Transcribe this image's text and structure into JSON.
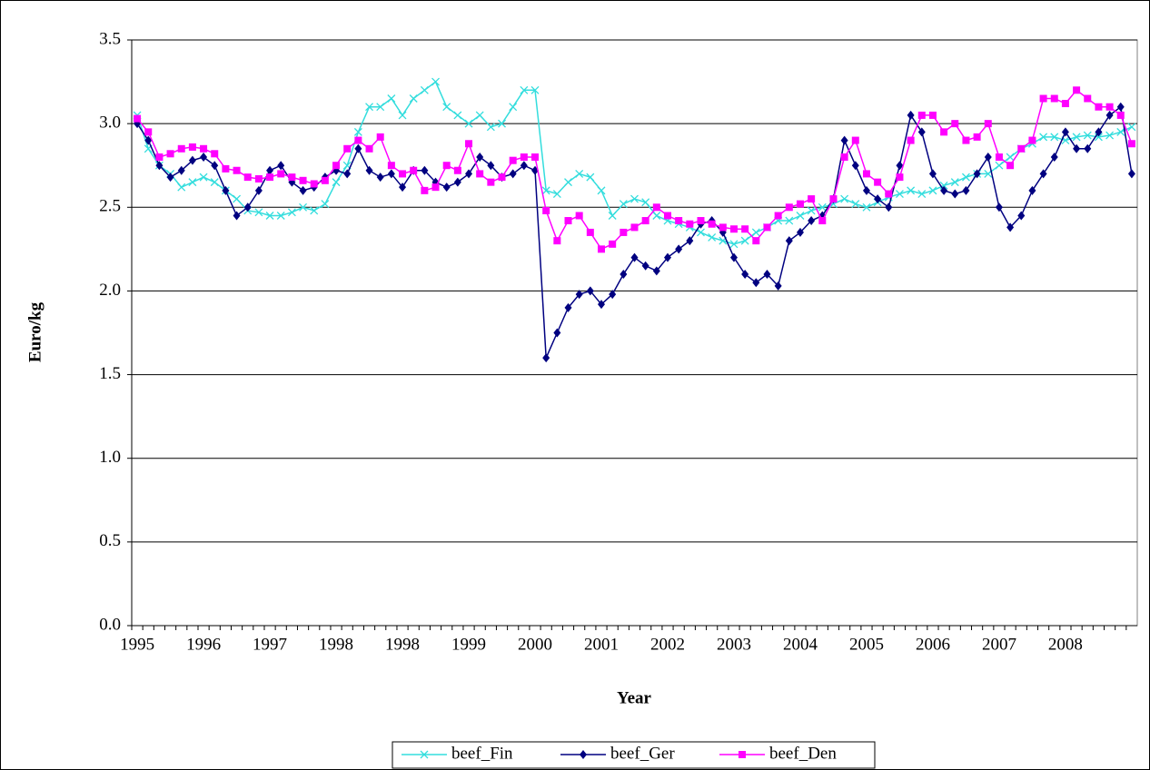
{
  "chart_data": {
    "type": "line",
    "x_label": "Year",
    "y_label": "Euro/kg",
    "categories": [
      "1995",
      null,
      null,
      null,
      null,
      null,
      "1996",
      null,
      null,
      null,
      null,
      null,
      "1997",
      null,
      null,
      null,
      null,
      null,
      "1998",
      null,
      null,
      null,
      null,
      null,
      "1998",
      null,
      null,
      null,
      null,
      null,
      "1999",
      null,
      null,
      null,
      null,
      null,
      "2000",
      null,
      null,
      null,
      null,
      null,
      "2001",
      null,
      null,
      null,
      null,
      null,
      "2002",
      null,
      null,
      null,
      null,
      null,
      "2003",
      null,
      null,
      null,
      null,
      null,
      "2004",
      null,
      null,
      null,
      null,
      null,
      "2005",
      null,
      null,
      null,
      null,
      null,
      "2006",
      null,
      null,
      null,
      null,
      null,
      "2007",
      null,
      null,
      null,
      null,
      null,
      "2008",
      null,
      null,
      null,
      null,
      null,
      null
    ],
    "series": [
      {
        "name": "beef_Fin",
        "color": "#33dddd",
        "marker": "x",
        "values": [
          3.05,
          2.85,
          2.75,
          2.7,
          2.62,
          2.65,
          2.68,
          2.65,
          2.6,
          2.55,
          2.48,
          2.47,
          2.45,
          2.45,
          2.47,
          2.5,
          2.48,
          2.52,
          2.65,
          2.75,
          2.95,
          3.1,
          3.1,
          3.15,
          3.05,
          3.15,
          3.2,
          3.25,
          3.1,
          3.05,
          3.0,
          3.05,
          2.98,
          3.0,
          3.1,
          3.2,
          3.2,
          2.6,
          2.58,
          2.65,
          2.7,
          2.68,
          2.6,
          2.45,
          2.52,
          2.55,
          2.53,
          2.45,
          2.42,
          2.4,
          2.38,
          2.35,
          2.32,
          2.3,
          2.28,
          2.3,
          2.35,
          2.38,
          2.42,
          2.42,
          2.45,
          2.48,
          2.5,
          2.52,
          2.55,
          2.52,
          2.5,
          2.53,
          2.56,
          2.58,
          2.6,
          2.58,
          2.6,
          2.63,
          2.65,
          2.68,
          2.7,
          2.7,
          2.75,
          2.8,
          2.85,
          2.88,
          2.92,
          2.92,
          2.9,
          2.92,
          2.93,
          2.92,
          2.93,
          2.95,
          2.98
        ]
      },
      {
        "name": "beef_Ger",
        "color": "#000080",
        "marker": "diamond",
        "values": [
          3.0,
          2.9,
          2.75,
          2.68,
          2.72,
          2.78,
          2.8,
          2.75,
          2.6,
          2.45,
          2.5,
          2.6,
          2.72,
          2.75,
          2.65,
          2.6,
          2.62,
          2.68,
          2.72,
          2.7,
          2.85,
          2.72,
          2.68,
          2.7,
          2.62,
          2.72,
          2.72,
          2.65,
          2.62,
          2.65,
          2.7,
          2.8,
          2.75,
          2.68,
          2.7,
          2.75,
          2.72,
          1.6,
          1.75,
          1.9,
          1.98,
          2.0,
          1.92,
          1.98,
          2.1,
          2.2,
          2.15,
          2.12,
          2.2,
          2.25,
          2.3,
          2.4,
          2.42,
          2.35,
          2.2,
          2.1,
          2.05,
          2.1,
          2.03,
          2.3,
          2.35,
          2.42,
          2.45,
          2.55,
          2.9,
          2.75,
          2.6,
          2.55,
          2.5,
          2.75,
          3.05,
          2.95,
          2.7,
          2.6,
          2.58,
          2.6,
          2.7,
          2.8,
          2.5,
          2.38,
          2.45,
          2.6,
          2.7,
          2.8,
          2.95,
          2.85,
          2.85,
          2.95,
          3.05,
          3.1,
          2.7
        ]
      },
      {
        "name": "beef_Den",
        "color": "#ff00ff",
        "marker": "square",
        "values": [
          3.03,
          2.95,
          2.8,
          2.82,
          2.85,
          2.86,
          2.85,
          2.82,
          2.73,
          2.72,
          2.68,
          2.67,
          2.68,
          2.7,
          2.68,
          2.66,
          2.64,
          2.66,
          2.75,
          2.85,
          2.9,
          2.85,
          2.92,
          2.75,
          2.7,
          2.72,
          2.6,
          2.62,
          2.75,
          2.72,
          2.88,
          2.7,
          2.65,
          2.68,
          2.78,
          2.8,
          2.8,
          2.48,
          2.3,
          2.42,
          2.45,
          2.35,
          2.25,
          2.28,
          2.35,
          2.38,
          2.42,
          2.5,
          2.45,
          2.42,
          2.4,
          2.42,
          2.4,
          2.38,
          2.37,
          2.37,
          2.3,
          2.38,
          2.45,
          2.5,
          2.52,
          2.55,
          2.42,
          2.55,
          2.8,
          2.9,
          2.7,
          2.65,
          2.58,
          2.68,
          2.9,
          3.05,
          3.05,
          2.95,
          3.0,
          2.9,
          2.92,
          3.0,
          2.8,
          2.75,
          2.85,
          2.9,
          3.15,
          3.15,
          3.12,
          3.2,
          3.15,
          3.1,
          3.1,
          3.05,
          2.88
        ]
      }
    ],
    "ylim": [
      0,
      3.5
    ],
    "yticks": [
      {
        "value": 0,
        "label": "0.0"
      },
      0.5,
      {
        "value": 1,
        "label": "1.0"
      },
      1.5,
      {
        "value": 2,
        "label": "2.0"
      },
      2.5,
      {
        "value": 3,
        "label": "3.0"
      },
      3.5
    ],
    "grid": true,
    "legend": "bottom"
  }
}
